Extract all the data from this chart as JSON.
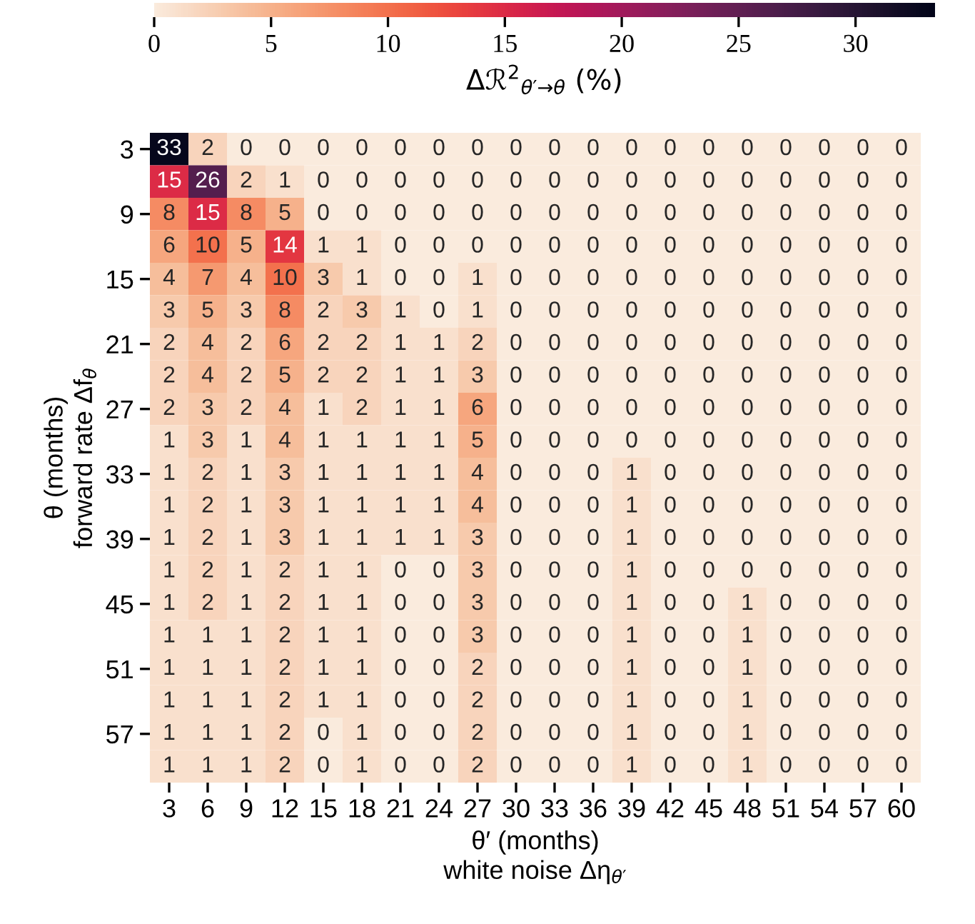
{
  "chart_data": {
    "type": "heatmap",
    "categories": [
      "3",
      "6",
      "9",
      "12",
      "15",
      "18",
      "21",
      "24",
      "27",
      "30",
      "33",
      "36",
      "39",
      "42",
      "45",
      "48",
      "51",
      "54",
      "57",
      "60"
    ],
    "y_categories": [
      "3",
      null,
      "9",
      null,
      "15",
      null,
      "21",
      null,
      "27",
      null,
      "33",
      null,
      "39",
      null,
      "45",
      null,
      "51",
      null,
      "57",
      null
    ],
    "cells": [
      [
        33,
        2,
        0,
        0,
        0,
        0,
        0,
        0,
        0,
        0,
        0,
        0,
        0,
        0,
        0,
        0,
        0,
        0,
        0,
        0
      ],
      [
        15,
        26,
        2,
        1,
        0,
        0,
        0,
        0,
        0,
        0,
        0,
        0,
        0,
        0,
        0,
        0,
        0,
        0,
        0,
        0
      ],
      [
        8,
        15,
        8,
        5,
        0,
        0,
        0,
        0,
        0,
        0,
        0,
        0,
        0,
        0,
        0,
        0,
        0,
        0,
        0,
        0
      ],
      [
        6,
        10,
        5,
        14,
        1,
        1,
        0,
        0,
        0,
        0,
        0,
        0,
        0,
        0,
        0,
        0,
        0,
        0,
        0,
        0
      ],
      [
        4,
        7,
        4,
        10,
        3,
        1,
        0,
        0,
        1,
        0,
        0,
        0,
        0,
        0,
        0,
        0,
        0,
        0,
        0,
        0
      ],
      [
        3,
        5,
        3,
        8,
        2,
        3,
        1,
        0,
        1,
        0,
        0,
        0,
        0,
        0,
        0,
        0,
        0,
        0,
        0,
        0
      ],
      [
        2,
        4,
        2,
        6,
        2,
        2,
        1,
        1,
        2,
        0,
        0,
        0,
        0,
        0,
        0,
        0,
        0,
        0,
        0,
        0
      ],
      [
        2,
        4,
        2,
        5,
        2,
        2,
        1,
        1,
        3,
        0,
        0,
        0,
        0,
        0,
        0,
        0,
        0,
        0,
        0,
        0
      ],
      [
        2,
        3,
        2,
        4,
        1,
        2,
        1,
        1,
        6,
        0,
        0,
        0,
        0,
        0,
        0,
        0,
        0,
        0,
        0,
        0
      ],
      [
        1,
        3,
        1,
        4,
        1,
        1,
        1,
        1,
        5,
        0,
        0,
        0,
        0,
        0,
        0,
        0,
        0,
        0,
        0,
        0
      ],
      [
        1,
        2,
        1,
        3,
        1,
        1,
        1,
        1,
        4,
        0,
        0,
        0,
        1,
        0,
        0,
        0,
        0,
        0,
        0,
        0
      ],
      [
        1,
        2,
        1,
        3,
        1,
        1,
        1,
        1,
        4,
        0,
        0,
        0,
        1,
        0,
        0,
        0,
        0,
        0,
        0,
        0
      ],
      [
        1,
        2,
        1,
        3,
        1,
        1,
        1,
        1,
        3,
        0,
        0,
        0,
        1,
        0,
        0,
        0,
        0,
        0,
        0,
        0
      ],
      [
        1,
        2,
        1,
        2,
        1,
        1,
        0,
        0,
        3,
        0,
        0,
        0,
        1,
        0,
        0,
        0,
        0,
        0,
        0,
        0
      ],
      [
        1,
        2,
        1,
        2,
        1,
        1,
        0,
        0,
        3,
        0,
        0,
        0,
        1,
        0,
        0,
        1,
        0,
        0,
        0,
        0
      ],
      [
        1,
        1,
        1,
        2,
        1,
        1,
        0,
        0,
        3,
        0,
        0,
        0,
        1,
        0,
        0,
        1,
        0,
        0,
        0,
        0
      ],
      [
        1,
        1,
        1,
        2,
        1,
        1,
        0,
        0,
        2,
        0,
        0,
        0,
        1,
        0,
        0,
        1,
        0,
        0,
        0,
        0
      ],
      [
        1,
        1,
        1,
        2,
        1,
        1,
        0,
        0,
        2,
        0,
        0,
        0,
        1,
        0,
        0,
        1,
        0,
        0,
        0,
        0
      ],
      [
        1,
        1,
        1,
        2,
        0,
        1,
        0,
        0,
        2,
        0,
        0,
        0,
        1,
        0,
        0,
        1,
        0,
        0,
        0,
        0
      ],
      [
        1,
        1,
        1,
        2,
        0,
        1,
        0,
        0,
        2,
        0,
        0,
        0,
        1,
        0,
        0,
        1,
        0,
        0,
        0,
        0
      ]
    ],
    "clim": [
      0,
      33.4
    ],
    "cticks": [
      0,
      5,
      10,
      15,
      20,
      25,
      30
    ],
    "clabel": "Δℛ$^{2}$$_{θ′→θ}$ (%)",
    "xlabel": "θ′ (months)\nwhite noise Δη$_{θ′}$",
    "ylabel": "θ (months)\nforward rate Δf$_{θ}$",
    "data_labels": true
  }
}
